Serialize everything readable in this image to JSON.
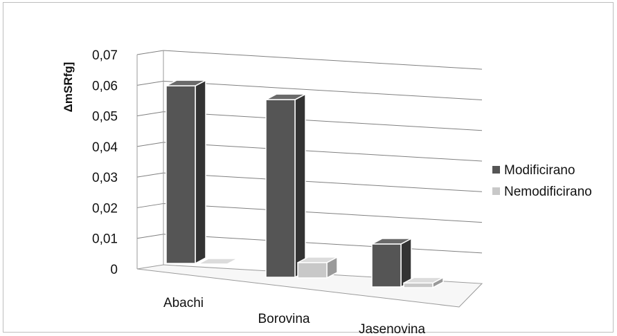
{
  "chart_data": {
    "type": "bar",
    "categories": [
      "Abachi",
      "Borovina",
      "Jasenovina"
    ],
    "series": [
      {
        "name": "Modificirano",
        "values": [
          0.058,
          0.058,
          0.014
        ],
        "color": "#555555"
      },
      {
        "name": "Nemodificirano",
        "values": [
          0.0,
          0.005,
          0.0015
        ],
        "color": "#c8c8c8"
      }
    ],
    "ylabel": "ΔmSRfg]",
    "ylim": [
      0,
      0.07
    ],
    "yticks": [
      "0",
      "0,01",
      "0,02",
      "0,03",
      "0,04",
      "0,05",
      "0,06",
      "0,07"
    ],
    "grid": true,
    "legend_position": "right",
    "style": "3d-column"
  }
}
